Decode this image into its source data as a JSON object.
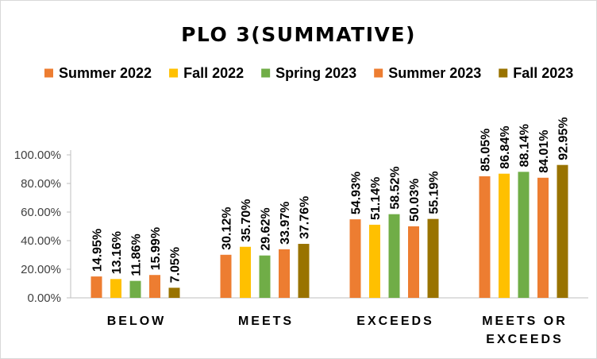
{
  "chart_data": {
    "type": "bar",
    "title": "PLO 3(SUMMATIVE)",
    "xlabel": "",
    "ylabel": "",
    "categories": [
      "BELOW",
      "MEETS",
      "EXCEEDS",
      "MEETS OR EXCEEDS"
    ],
    "series": [
      {
        "name": "Summer 2022",
        "color": "#ED7D31",
        "values": [
          14.95,
          30.12,
          54.93,
          85.05
        ],
        "labels": [
          "14.95%",
          "30.12%",
          "54.93%",
          "85.05%"
        ]
      },
      {
        "name": "Fall 2022",
        "color": "#FFC000",
        "values": [
          13.16,
          35.7,
          51.14,
          86.84
        ],
        "labels": [
          "13.16%",
          "35.70%",
          "51.14%",
          "86.84%"
        ]
      },
      {
        "name": "Spring 2023",
        "color": "#70AD47",
        "values": [
          11.86,
          29.62,
          58.52,
          88.14
        ],
        "labels": [
          "11.86%",
          "29.62%",
          "58.52%",
          "88.14%"
        ]
      },
      {
        "name": "Summer 2023",
        "color": "#ED7D31",
        "values": [
          15.99,
          33.97,
          50.03,
          84.01
        ],
        "labels": [
          "15.99%",
          "33.97%",
          "50.03%",
          "84.01%"
        ]
      },
      {
        "name": "Fall 2023",
        "color": "#997300",
        "values": [
          7.05,
          37.76,
          55.19,
          92.95
        ],
        "labels": [
          "7.05%",
          "37.76%",
          "55.19%",
          "92.95%"
        ]
      }
    ],
    "ylim": [
      0,
      100
    ],
    "yticks": [
      0,
      20,
      40,
      60,
      80,
      100
    ],
    "ytick_labels": [
      "0.00%",
      "20.00%",
      "40.00%",
      "60.00%",
      "80.00%",
      "100.00%"
    ],
    "grid": false,
    "legend": "top"
  }
}
